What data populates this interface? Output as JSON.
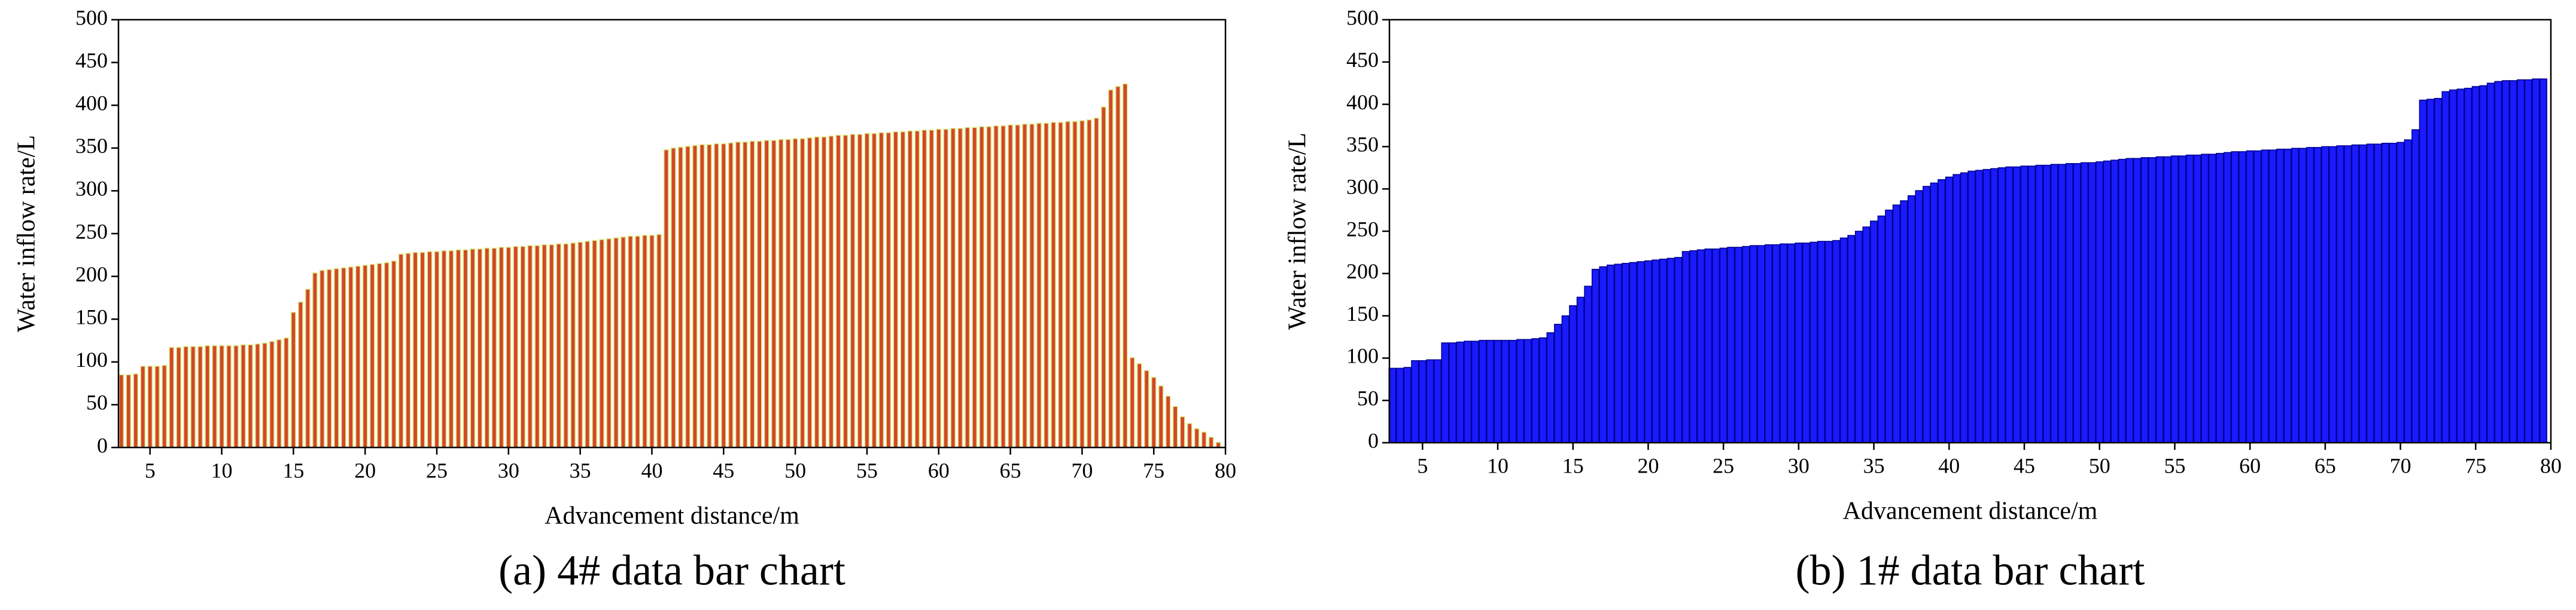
{
  "chart_data": [
    {
      "type": "bar",
      "ylabel": "Water inflow rate/L",
      "xlabel": "Advancement distance/m",
      "caption": "(a) 4# data bar chart",
      "color": "#d4452a",
      "edgecolor": "#d8e87a",
      "xlim": [
        2.8,
        80
      ],
      "ylim": [
        0,
        500
      ],
      "xticks": [
        5,
        10,
        15,
        20,
        25,
        30,
        35,
        40,
        45,
        50,
        55,
        60,
        65,
        70,
        75,
        80
      ],
      "yticks": [
        0,
        50,
        100,
        150,
        200,
        250,
        300,
        350,
        400,
        450,
        500
      ],
      "x": [
        3,
        3.5,
        4,
        4.5,
        5,
        5.5,
        6,
        6.5,
        7,
        7.5,
        8,
        8.5,
        9,
        9.5,
        10,
        10.5,
        11,
        11.5,
        12,
        12.5,
        13,
        13.5,
        14,
        14.5,
        15,
        15.5,
        16,
        16.5,
        17,
        17.5,
        18,
        18.5,
        19,
        19.5,
        20,
        20.5,
        21,
        21.5,
        22,
        22.5,
        23,
        23.5,
        24,
        24.5,
        25,
        25.5,
        26,
        26.5,
        27,
        27.5,
        28,
        28.5,
        29,
        29.5,
        30,
        30.5,
        31,
        31.5,
        32,
        32.5,
        33,
        33.5,
        34,
        34.5,
        35,
        35.5,
        36,
        36.5,
        37,
        37.5,
        38,
        38.5,
        39,
        39.5,
        40,
        40.5,
        41,
        41.5,
        42,
        42.5,
        43,
        43.5,
        44,
        44.5,
        45,
        45.5,
        46,
        46.5,
        47,
        47.5,
        48,
        48.5,
        49,
        49.5,
        50,
        50.5,
        51,
        51.5,
        52,
        52.5,
        53,
        53.5,
        54,
        54.5,
        55,
        55.5,
        56,
        56.5,
        57,
        57.5,
        58,
        58.5,
        59,
        59.5,
        60,
        60.5,
        61,
        61.5,
        62,
        62.5,
        63,
        63.5,
        64,
        64.5,
        65,
        65.5,
        66,
        66.5,
        67,
        67.5,
        68,
        68.5,
        69,
        69.5,
        70,
        70.5,
        71,
        71.5,
        72,
        72.5,
        73,
        73.5,
        74,
        74.5,
        75,
        75.5,
        76,
        76.5,
        77,
        77.5,
        78,
        78.5,
        79,
        79.5
      ],
      "values": [
        85,
        85,
        86,
        95,
        95,
        95,
        96,
        117,
        117,
        118,
        118,
        118,
        119,
        119,
        119,
        119,
        119,
        120,
        120,
        121,
        122,
        124,
        126,
        128,
        158,
        170,
        185,
        204,
        207,
        208,
        209,
        210,
        211,
        212,
        213,
        214,
        215,
        216,
        218,
        226,
        227,
        228,
        228,
        229,
        229,
        230,
        230,
        231,
        231,
        232,
        232,
        233,
        233,
        234,
        234,
        235,
        235,
        236,
        236,
        237,
        237,
        238,
        238,
        239,
        240,
        241,
        242,
        243,
        244,
        245,
        246,
        247,
        247,
        248,
        248,
        249,
        348,
        350,
        351,
        352,
        353,
        354,
        354,
        355,
        355,
        356,
        357,
        357,
        358,
        358,
        359,
        359,
        360,
        360,
        361,
        361,
        362,
        363,
        363,
        364,
        365,
        365,
        366,
        366,
        367,
        367,
        368,
        368,
        369,
        369,
        370,
        370,
        371,
        371,
        372,
        372,
        373,
        373,
        374,
        374,
        375,
        375,
        376,
        376,
        377,
        377,
        378,
        378,
        379,
        379,
        380,
        380,
        381,
        381,
        382,
        383,
        385,
        398,
        418,
        422,
        425,
        105,
        98,
        90,
        82,
        72,
        60,
        48,
        36,
        28,
        22,
        18,
        12,
        6
      ]
    },
    {
      "type": "bar",
      "ylabel": "Water inflow rate/L",
      "xlabel": "Advancement distance/m",
      "caption": "(b) 1# data bar chart",
      "color": "#1a1aff",
      "edgecolor": "#00008b",
      "xlim": [
        2.8,
        80
      ],
      "ylim": [
        0,
        500
      ],
      "xticks": [
        5,
        10,
        15,
        20,
        25,
        30,
        35,
        40,
        45,
        50,
        55,
        60,
        65,
        70,
        75,
        80
      ],
      "yticks": [
        0,
        50,
        100,
        150,
        200,
        250,
        300,
        350,
        400,
        450,
        500
      ],
      "x": [
        3,
        3.5,
        4,
        4.5,
        5,
        5.5,
        6,
        6.5,
        7,
        7.5,
        8,
        8.5,
        9,
        9.5,
        10,
        10.5,
        11,
        11.5,
        12,
        12.5,
        13,
        13.5,
        14,
        14.5,
        15,
        15.5,
        16,
        16.5,
        17,
        17.5,
        18,
        18.5,
        19,
        19.5,
        20,
        20.5,
        21,
        21.5,
        22,
        22.5,
        23,
        23.5,
        24,
        24.5,
        25,
        25.5,
        26,
        26.5,
        27,
        27.5,
        28,
        28.5,
        29,
        29.5,
        30,
        30.5,
        31,
        31.5,
        32,
        32.5,
        33,
        33.5,
        34,
        34.5,
        35,
        35.5,
        36,
        36.5,
        37,
        37.5,
        38,
        38.5,
        39,
        39.5,
        40,
        40.5,
        41,
        41.5,
        42,
        42.5,
        43,
        43.5,
        44,
        44.5,
        45,
        45.5,
        46,
        46.5,
        47,
        47.5,
        48,
        48.5,
        49,
        49.5,
        50,
        50.5,
        51,
        51.5,
        52,
        52.5,
        53,
        53.5,
        54,
        54.5,
        55,
        55.5,
        56,
        56.5,
        57,
        57.5,
        58,
        58.5,
        59,
        59.5,
        60,
        60.5,
        61,
        61.5,
        62,
        62.5,
        63,
        63.5,
        64,
        64.5,
        65,
        65.5,
        66,
        66.5,
        67,
        67.5,
        68,
        68.5,
        69,
        69.5,
        70,
        70.5,
        71,
        71.5,
        72,
        72.5,
        73,
        73.5,
        74,
        74.5,
        75,
        75.5,
        76,
        76.5,
        77,
        77.5,
        78,
        78.5,
        79,
        79.5
      ],
      "values": [
        88,
        88,
        89,
        97,
        97,
        98,
        98,
        118,
        118,
        119,
        120,
        120,
        121,
        121,
        121,
        121,
        121,
        122,
        122,
        123,
        124,
        130,
        140,
        150,
        162,
        172,
        185,
        205,
        208,
        210,
        211,
        212,
        213,
        214,
        215,
        216,
        217,
        218,
        219,
        226,
        227,
        228,
        229,
        229,
        230,
        231,
        231,
        232,
        233,
        233,
        234,
        234,
        235,
        235,
        236,
        236,
        237,
        238,
        238,
        239,
        242,
        245,
        250,
        255,
        262,
        268,
        275,
        281,
        286,
        292,
        298,
        303,
        307,
        311,
        314,
        317,
        319,
        321,
        322,
        323,
        324,
        325,
        326,
        326,
        327,
        327,
        328,
        328,
        329,
        329,
        330,
        330,
        331,
        331,
        332,
        333,
        334,
        335,
        336,
        336,
        337,
        337,
        338,
        338,
        339,
        339,
        340,
        340,
        341,
        341,
        342,
        343,
        344,
        344,
        345,
        345,
        346,
        346,
        347,
        347,
        348,
        348,
        349,
        349,
        350,
        350,
        351,
        351,
        352,
        352,
        353,
        353,
        354,
        354,
        355,
        358,
        370,
        405,
        406,
        407,
        415,
        417,
        418,
        419,
        421,
        422,
        425,
        427,
        428,
        428,
        429,
        429,
        430,
        430
      ]
    }
  ]
}
